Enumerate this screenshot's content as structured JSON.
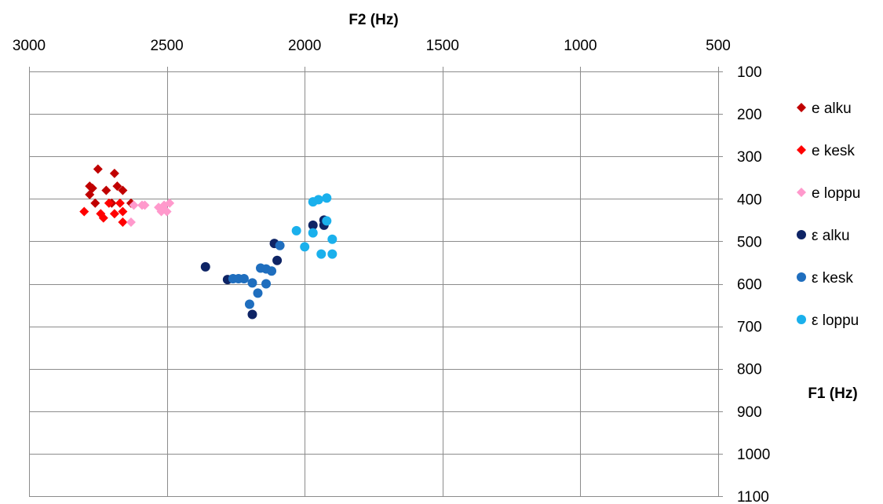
{
  "chart_data": {
    "type": "scatter",
    "title": "",
    "xlabel": "F2 (Hz)",
    "ylabel": "F1 (Hz)",
    "xlim": [
      3000,
      500
    ],
    "ylim": [
      1100,
      100
    ],
    "x_axis_reversed": true,
    "y_axis_reversed": true,
    "x_axis_position": "top",
    "y_axis_position": "right",
    "x_ticks": [
      3000,
      2500,
      2000,
      1500,
      1000,
      500
    ],
    "y_ticks": [
      100,
      200,
      300,
      400,
      500,
      600,
      700,
      800,
      900,
      1000,
      1100
    ],
    "grid": "horizontal and vertical",
    "legend_position": "right",
    "series": [
      {
        "name": "e alku",
        "marker": "diamond",
        "color": "#C00000",
        "points": [
          {
            "x": 2750,
            "y": 330
          },
          {
            "x": 2690,
            "y": 340
          },
          {
            "x": 2780,
            "y": 370
          },
          {
            "x": 2770,
            "y": 375
          },
          {
            "x": 2680,
            "y": 370
          },
          {
            "x": 2720,
            "y": 380
          },
          {
            "x": 2660,
            "y": 380
          },
          {
            "x": 2780,
            "y": 390
          },
          {
            "x": 2760,
            "y": 410
          },
          {
            "x": 2700,
            "y": 410
          },
          {
            "x": 2630,
            "y": 410
          }
        ]
      },
      {
        "name": "e kesk",
        "marker": "diamond",
        "color": "#FF0000",
        "points": [
          {
            "x": 2710,
            "y": 410
          },
          {
            "x": 2670,
            "y": 410
          },
          {
            "x": 2800,
            "y": 430
          },
          {
            "x": 2740,
            "y": 435
          },
          {
            "x": 2690,
            "y": 435
          },
          {
            "x": 2660,
            "y": 430
          },
          {
            "x": 2730,
            "y": 445
          },
          {
            "x": 2660,
            "y": 455
          }
        ]
      },
      {
        "name": "e loppu",
        "marker": "diamond",
        "color": "#FF99CC",
        "points": [
          {
            "x": 2620,
            "y": 415
          },
          {
            "x": 2590,
            "y": 415
          },
          {
            "x": 2580,
            "y": 415
          },
          {
            "x": 2530,
            "y": 420
          },
          {
            "x": 2510,
            "y": 415
          },
          {
            "x": 2490,
            "y": 410
          },
          {
            "x": 2520,
            "y": 430
          },
          {
            "x": 2500,
            "y": 430
          },
          {
            "x": 2630,
            "y": 455
          }
        ]
      },
      {
        "name": "ε alku",
        "marker": "circle",
        "color": "#0E2465",
        "points": [
          {
            "x": 2360,
            "y": 560
          },
          {
            "x": 2280,
            "y": 590
          },
          {
            "x": 2190,
            "y": 672
          },
          {
            "x": 2110,
            "y": 505
          },
          {
            "x": 2100,
            "y": 545
          },
          {
            "x": 1970,
            "y": 462
          },
          {
            "x": 1930,
            "y": 450
          },
          {
            "x": 1930,
            "y": 462
          }
        ]
      },
      {
        "name": "ε kesk",
        "marker": "circle",
        "color": "#1F6EBE",
        "points": [
          {
            "x": 2260,
            "y": 588
          },
          {
            "x": 2240,
            "y": 588
          },
          {
            "x": 2220,
            "y": 588
          },
          {
            "x": 2190,
            "y": 598
          },
          {
            "x": 2170,
            "y": 622
          },
          {
            "x": 2200,
            "y": 648
          },
          {
            "x": 2160,
            "y": 563
          },
          {
            "x": 2140,
            "y": 565
          },
          {
            "x": 2120,
            "y": 570
          },
          {
            "x": 2140,
            "y": 600
          },
          {
            "x": 2090,
            "y": 510
          }
        ]
      },
      {
        "name": "ε loppu",
        "marker": "circle",
        "color": "#1AB0EC",
        "points": [
          {
            "x": 1970,
            "y": 407
          },
          {
            "x": 1950,
            "y": 402
          },
          {
            "x": 1920,
            "y": 398
          },
          {
            "x": 2030,
            "y": 475
          },
          {
            "x": 1970,
            "y": 480
          },
          {
            "x": 1920,
            "y": 452
          },
          {
            "x": 2000,
            "y": 513
          },
          {
            "x": 1940,
            "y": 530
          },
          {
            "x": 1900,
            "y": 495
          },
          {
            "x": 1900,
            "y": 530
          }
        ]
      }
    ]
  }
}
